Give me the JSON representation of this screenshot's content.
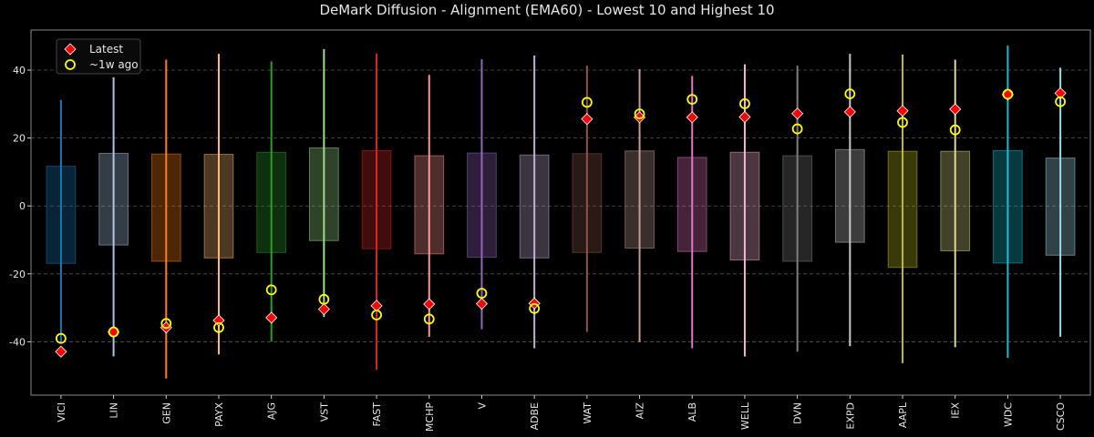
{
  "chart_data": {
    "type": "range-box",
    "title": "DeMark Diffusion - Alignment (EMA60) - Lowest 10 and Highest 10",
    "xlabel": "",
    "ylabel": "",
    "ylim": [
      -55.7,
      51.8
    ],
    "yticks": [
      -40,
      -20,
      0,
      20,
      40
    ],
    "grid": "horizontal dashed",
    "legend": {
      "placement": "top-left",
      "entries": [
        {
          "name": "Latest",
          "marker": "diamond",
          "color": "#ff0000"
        },
        {
          "name": "~1w ago",
          "marker": "circle",
          "color": "#ffff00"
        }
      ]
    },
    "categories": [
      "VICI",
      "LIN",
      "GEN",
      "PAYX",
      "AJG",
      "VST",
      "FAST",
      "MCHP",
      "V",
      "ADBE",
      "WAT",
      "AIZ",
      "ALB",
      "WELL",
      "DVN",
      "EXPD",
      "AAPL",
      "IEX",
      "WDC",
      "CSCO"
    ],
    "colors": [
      "#1f77b4",
      "#aec7e8",
      "#ff7f0e",
      "#ffbb78",
      "#2ca02c",
      "#98df8a",
      "#d62728",
      "#ff9896",
      "#9467bd",
      "#c5b0d5",
      "#8c564b",
      "#c49c94",
      "#e377c2",
      "#f7b6d2",
      "#7f7f7f",
      "#c7c7c7",
      "#bcbd22",
      "#dbdb8d",
      "#17becf",
      "#9edae5"
    ],
    "range_high": [
      31.2,
      37.9,
      43.1,
      44.8,
      42.6,
      46.2,
      44.9,
      38.6,
      43.2,
      44.3,
      41.3,
      40.3,
      38.3,
      41.7,
      41.3,
      44.8,
      44.6,
      43.1,
      47.2,
      40.7
    ],
    "range_low": [
      -40.3,
      -44.3,
      -50.8,
      -43.7,
      -39.9,
      -32.7,
      -48.3,
      -38.5,
      -36.3,
      -41.9,
      -37.1,
      -40.1,
      -41.9,
      -44.3,
      -42.9,
      -41.3,
      -46.3,
      -41.6,
      -44.7,
      -38.5
    ],
    "box_high": [
      11.7,
      15.5,
      15.3,
      15.2,
      15.8,
      17.1,
      16.3,
      14.8,
      15.6,
      15.0,
      15.4,
      16.2,
      14.3,
      15.8,
      14.8,
      16.6,
      16.1,
      16.1,
      16.3,
      14.1
    ],
    "box_low": [
      -16.9,
      -11.5,
      -16.3,
      -15.3,
      -13.7,
      -10.2,
      -12.6,
      -14.1,
      -15.1,
      -15.3,
      -13.7,
      -12.4,
      -13.4,
      -15.9,
      -16.3,
      -10.7,
      -18.1,
      -13.2,
      -16.8,
      -14.5
    ],
    "series": [
      {
        "name": "Latest",
        "values": [
          -42.9,
          -37.1,
          -35.8,
          -33.7,
          -32.9,
          -30.4,
          -29.4,
          -28.9,
          -28.8,
          -28.7,
          25.6,
          26.1,
          26.1,
          26.2,
          27.2,
          27.7,
          28.0,
          28.5,
          32.8,
          33.2
        ]
      },
      {
        "name": "~1w ago",
        "values": [
          -39.0,
          -37.1,
          -34.6,
          -35.8,
          -24.7,
          -27.5,
          -32.1,
          -33.3,
          -25.7,
          -30.2,
          30.5,
          27.1,
          31.4,
          30.1,
          22.7,
          33.0,
          24.6,
          22.4,
          32.9,
          30.7
        ]
      }
    ]
  }
}
